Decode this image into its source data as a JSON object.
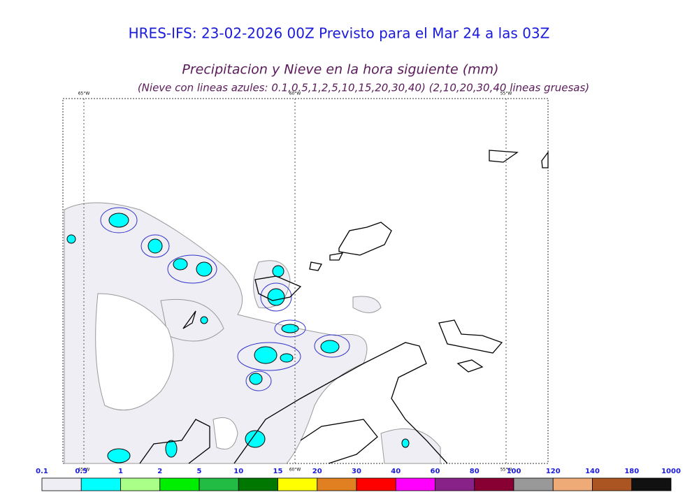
{
  "header": {
    "title": "HRES-IFS: 23-02-2026 00Z Previsto para el Mar 24 a las 03Z",
    "subtitle": "Precipitacion y Nieve en la hora siguiente (mm)",
    "note": "(Nieve con lineas azules: 0.1,0.5,1,2,5,10,15,20,30,40)  (2,10,20,30,40 lineas gruesas)"
  },
  "map": {
    "meridians": [
      "65°W",
      "60°W",
      "55°W"
    ]
  },
  "colorbar": {
    "labels": [
      "0.1",
      "0.5",
      "1",
      "2",
      "5",
      "10",
      "15",
      "20",
      "30",
      "40",
      "60",
      "80",
      "100",
      "120",
      "140",
      "180",
      "1000"
    ],
    "colors": [
      "#eeeef4",
      "#00ffff",
      "#aaff88",
      "#00ee00",
      "#22bb44",
      "#007700",
      "#ffff00",
      "#e08020",
      "#ff0000",
      "#ff00ff",
      "#882288",
      "#880033",
      "#999999",
      "#eeaa77",
      "#aa5522",
      "#111111"
    ]
  }
}
